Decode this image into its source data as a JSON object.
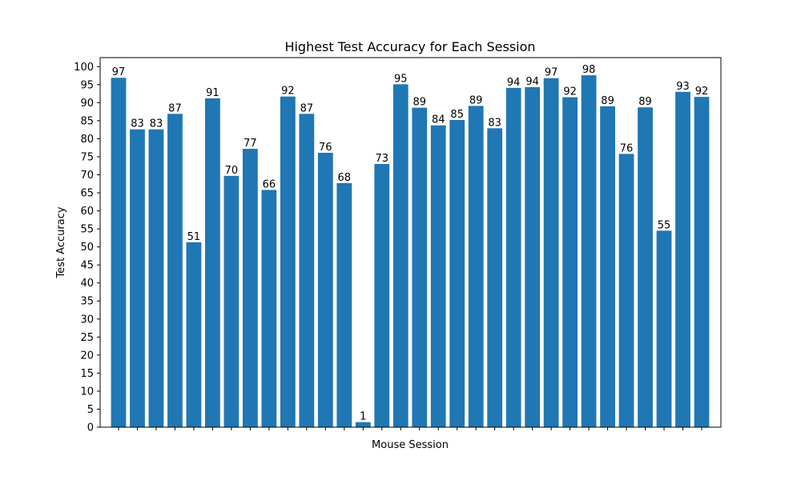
{
  "colors": {
    "bar": "#1f77b4",
    "axis": "#000000",
    "background": "#ffffff"
  },
  "chart_data": {
    "type": "bar",
    "title": "Highest Test Accuracy for Each Session",
    "xlabel": "Mouse Session",
    "ylabel": "Test Accuracy",
    "ylim": [
      0,
      102.5
    ],
    "yticks": [
      0,
      5,
      10,
      15,
      20,
      25,
      30,
      35,
      40,
      45,
      50,
      55,
      60,
      65,
      70,
      75,
      80,
      85,
      90,
      95,
      100
    ],
    "grid": false,
    "values": [
      96.9,
      82.6,
      82.6,
      86.9,
      51.3,
      91.2,
      69.7,
      77.2,
      65.8,
      91.7,
      86.9,
      76.1,
      67.7,
      1.4,
      73.0,
      95.1,
      88.6,
      83.7,
      85.2,
      89.1,
      82.9,
      94.1,
      94.3,
      96.8,
      91.5,
      97.6,
      89.0,
      75.8,
      88.7,
      54.5,
      93.0,
      91.6
    ],
    "data_labels": [
      "97",
      "83",
      "83",
      "87",
      "51",
      "91",
      "70",
      "77",
      "66",
      "92",
      "87",
      "76",
      "68",
      "1",
      "73",
      "95",
      "89",
      "84",
      "85",
      "89",
      "83",
      "94",
      "94",
      "97",
      "92",
      "98",
      "89",
      "76",
      "89",
      "55",
      "93",
      "92"
    ]
  }
}
